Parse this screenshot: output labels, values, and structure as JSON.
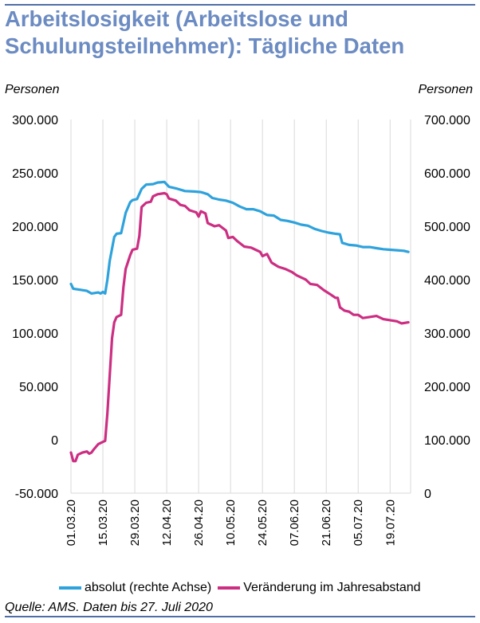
{
  "title": "Arbeitslosigkeit (Arbeitslose und Schulungsteilnehmer): Tägliche Daten",
  "source": "Quelle: AMS. Daten bis 27. Juli 2020",
  "colors": {
    "title": "#6b8bc2",
    "rule": "#4f6ea6",
    "grid": "#d9d9d9"
  },
  "chart_data": {
    "type": "line",
    "y_left": {
      "label": "Personen",
      "ticks": [
        "300.000",
        "250.000",
        "200.000",
        "150.000",
        "100.000",
        "50.000",
        "0",
        "-50.000"
      ],
      "range": [
        -50000,
        300000
      ]
    },
    "y_right": {
      "label": "Personen",
      "ticks": [
        "700.000",
        "600.000",
        "500.000",
        "400.000",
        "300.000",
        "200.000",
        "100.000",
        "0"
      ],
      "range": [
        0,
        700000
      ]
    },
    "x": {
      "ticks": [
        "01.03.20",
        "15.03.20",
        "29.03.20",
        "12.04.20",
        "26.04.20",
        "10.05.20",
        "24.05.20",
        "07.06.20",
        "21.06.20",
        "05.07.20",
        "19.07.20"
      ],
      "range": [
        "01.03.20",
        "27.07.20"
      ]
    },
    "grid": "vertical",
    "legend_position": "bottom",
    "series": [
      {
        "name": "absolut (rechte Achse)",
        "axis": "right",
        "color": "#2ea2dc",
        "points": [
          [
            "01.03.20",
            392000
          ],
          [
            "02.03.20",
            383000
          ],
          [
            "05.03.20",
            381000
          ],
          [
            "08.03.20",
            379000
          ],
          [
            "10.03.20",
            374000
          ],
          [
            "13.03.20",
            376000
          ],
          [
            "14.03.20",
            374000
          ],
          [
            "15.03.20",
            377000
          ],
          [
            "16.03.20",
            374000
          ],
          [
            "17.03.20",
            400000
          ],
          [
            "18.03.20",
            435000
          ],
          [
            "20.03.20",
            480000
          ],
          [
            "21.03.20",
            486000
          ],
          [
            "23.03.20",
            487000
          ],
          [
            "25.03.20",
            525000
          ],
          [
            "27.03.20",
            545000
          ],
          [
            "28.03.20",
            549000
          ],
          [
            "30.03.20",
            551000
          ],
          [
            "01.04.20",
            570000
          ],
          [
            "03.04.20",
            578000
          ],
          [
            "06.04.20",
            579000
          ],
          [
            "08.04.20",
            582000
          ],
          [
            "11.04.20",
            583000
          ],
          [
            "13.04.20",
            574000
          ],
          [
            "16.04.20",
            571000
          ],
          [
            "20.04.20",
            566000
          ],
          [
            "24.04.20",
            565000
          ],
          [
            "27.04.20",
            564000
          ],
          [
            "30.04.20",
            560000
          ],
          [
            "02.05.20",
            553000
          ],
          [
            "05.05.20",
            550000
          ],
          [
            "08.05.20",
            548000
          ],
          [
            "11.05.20",
            544000
          ],
          [
            "14.05.20",
            537000
          ],
          [
            "17.05.20",
            532000
          ],
          [
            "20.05.20",
            532000
          ],
          [
            "23.05.20",
            528000
          ],
          [
            "26.05.20",
            521000
          ],
          [
            "29.05.20",
            520000
          ],
          [
            "01.06.20",
            512000
          ],
          [
            "04.06.20",
            510000
          ],
          [
            "07.06.20",
            507000
          ],
          [
            "10.06.20",
            503000
          ],
          [
            "13.06.20",
            501000
          ],
          [
            "16.06.20",
            495000
          ],
          [
            "19.06.20",
            491000
          ],
          [
            "22.06.20",
            488000
          ],
          [
            "25.06.20",
            486000
          ],
          [
            "27.06.20",
            485000
          ],
          [
            "28.06.20",
            469000
          ],
          [
            "01.07.20",
            465000
          ],
          [
            "04.07.20",
            464000
          ],
          [
            "07.07.20",
            461000
          ],
          [
            "10.07.20",
            461000
          ],
          [
            "13.07.20",
            459000
          ],
          [
            "16.07.20",
            457000
          ],
          [
            "19.07.20",
            456000
          ],
          [
            "22.07.20",
            455000
          ],
          [
            "25.07.20",
            454000
          ],
          [
            "27.07.20",
            452000
          ]
        ]
      },
      {
        "name": "Veränderung im Jahresabstand",
        "axis": "left",
        "color": "#cc2e82",
        "points": [
          [
            "01.03.20",
            -12000
          ],
          [
            "02.03.20",
            -20000
          ],
          [
            "03.03.20",
            -20000
          ],
          [
            "04.03.20",
            -14000
          ],
          [
            "06.03.20",
            -12000
          ],
          [
            "08.03.20",
            -11000
          ],
          [
            "09.03.20",
            -13000
          ],
          [
            "10.03.20",
            -12000
          ],
          [
            "11.03.20",
            -9000
          ],
          [
            "13.03.20",
            -4000
          ],
          [
            "15.03.20",
            -2000
          ],
          [
            "16.03.20",
            -1000
          ],
          [
            "17.03.20",
            25000
          ],
          [
            "18.03.20",
            60000
          ],
          [
            "19.03.20",
            95000
          ],
          [
            "20.03.20",
            110000
          ],
          [
            "21.03.20",
            115000
          ],
          [
            "22.03.20",
            116000
          ],
          [
            "23.03.20",
            117000
          ],
          [
            "24.03.20",
            143000
          ],
          [
            "25.03.20",
            160000
          ],
          [
            "27.03.20",
            173000
          ],
          [
            "28.03.20",
            178000
          ],
          [
            "30.03.20",
            179000
          ],
          [
            "31.03.20",
            191000
          ],
          [
            "01.04.20",
            218000
          ],
          [
            "03.04.20",
            222000
          ],
          [
            "05.04.20",
            223000
          ],
          [
            "06.04.20",
            228000
          ],
          [
            "08.04.20",
            230000
          ],
          [
            "11.04.20",
            231000
          ],
          [
            "12.04.20",
            230000
          ],
          [
            "13.04.20",
            226000
          ],
          [
            "16.04.20",
            224000
          ],
          [
            "18.04.20",
            220000
          ],
          [
            "20.04.20",
            219000
          ],
          [
            "22.04.20",
            215000
          ],
          [
            "25.04.20",
            213000
          ],
          [
            "26.04.20",
            209000
          ],
          [
            "27.04.20",
            214000
          ],
          [
            "29.04.20",
            212000
          ],
          [
            "30.04.20",
            203000
          ],
          [
            "03.05.20",
            200000
          ],
          [
            "05.05.20",
            201000
          ],
          [
            "08.05.20",
            196000
          ],
          [
            "09.05.20",
            189000
          ],
          [
            "11.05.20",
            190000
          ],
          [
            "13.05.20",
            186000
          ],
          [
            "16.05.20",
            181000
          ],
          [
            "19.05.20",
            180000
          ],
          [
            "21.05.20",
            178000
          ],
          [
            "23.05.20",
            176000
          ],
          [
            "24.05.20",
            172000
          ],
          [
            "26.05.20",
            174000
          ],
          [
            "28.05.20",
            166000
          ],
          [
            "31.05.20",
            162000
          ],
          [
            "03.06.20",
            160000
          ],
          [
            "06.06.20",
            157000
          ],
          [
            "08.06.20",
            154000
          ],
          [
            "10.06.20",
            152000
          ],
          [
            "12.06.20",
            150000
          ],
          [
            "14.06.20",
            146000
          ],
          [
            "17.06.20",
            145000
          ],
          [
            "20.06.20",
            140000
          ],
          [
            "23.06.20",
            136000
          ],
          [
            "25.06.20",
            133000
          ],
          [
            "26.06.20",
            133000
          ],
          [
            "27.06.20",
            124000
          ],
          [
            "29.06.20",
            121000
          ],
          [
            "01.07.20",
            120000
          ],
          [
            "03.07.20",
            117000
          ],
          [
            "05.07.20",
            117000
          ],
          [
            "07.07.20",
            114000
          ],
          [
            "10.07.20",
            115000
          ],
          [
            "13.07.20",
            116000
          ],
          [
            "16.07.20",
            113000
          ],
          [
            "19.07.20",
            112000
          ],
          [
            "22.07.20",
            111000
          ],
          [
            "24.07.20",
            109000
          ],
          [
            "27.07.20",
            110000
          ]
        ]
      }
    ]
  }
}
